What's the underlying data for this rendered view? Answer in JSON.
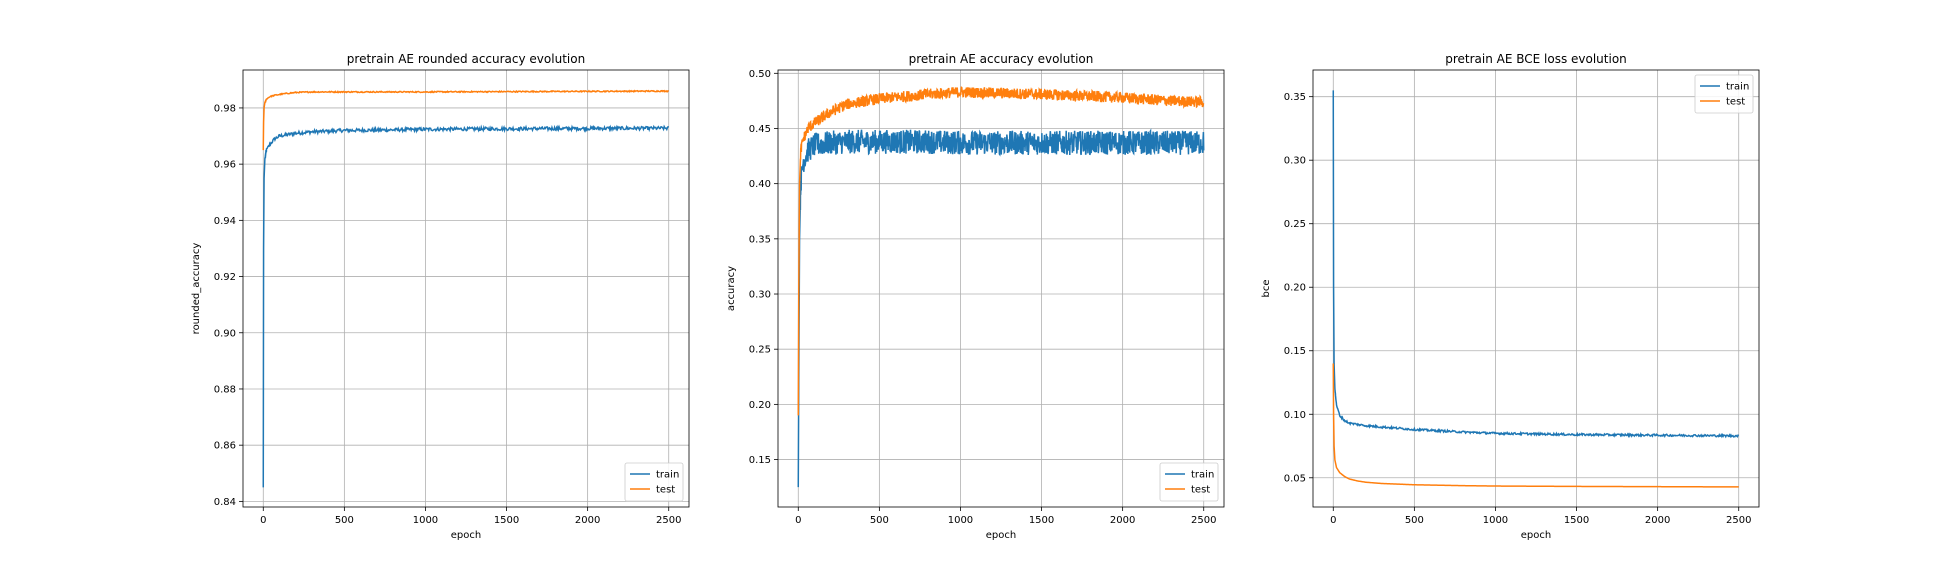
{
  "colors": {
    "train": "#1f77b4",
    "test": "#ff7f0e",
    "grid": "#b0b0b0",
    "frame": "#000000"
  },
  "chart_data": [
    {
      "type": "line",
      "title": "pretrain AE rounded accuracy evolution",
      "xlabel": "epoch",
      "ylabel": "rounded_accuracy",
      "xlim": [
        -125,
        2625
      ],
      "ylim": [
        0.838,
        0.9935
      ],
      "xticks": [
        0,
        500,
        1000,
        1500,
        2000,
        2500
      ],
      "xtick_labels": [
        "0",
        "500",
        "1000",
        "1500",
        "2000",
        "2500"
      ],
      "yticks": [
        0.84,
        0.86,
        0.88,
        0.9,
        0.92,
        0.94,
        0.96,
        0.98
      ],
      "ytick_labels": [
        "0.84",
        "0.86",
        "0.88",
        "0.90",
        "0.92",
        "0.94",
        "0.96",
        "0.98"
      ],
      "grid": true,
      "legend": "lower-right",
      "legend_entries": [
        "train",
        "test"
      ],
      "series": [
        {
          "name": "train",
          "color_key": "train",
          "noise": 0.0006,
          "x": [
            0,
            2,
            5,
            10,
            20,
            40,
            70,
            100,
            150,
            200,
            300,
            500,
            800,
            1000,
            1500,
            2000,
            2500
          ],
          "y": [
            0.845,
            0.93,
            0.955,
            0.962,
            0.965,
            0.967,
            0.969,
            0.97,
            0.9705,
            0.971,
            0.9715,
            0.972,
            0.9722,
            0.9724,
            0.9726,
            0.9727,
            0.9728
          ]
        },
        {
          "name": "test",
          "color_key": "test",
          "noise": 0.0002,
          "x": [
            0,
            2,
            5,
            10,
            20,
            40,
            70,
            100,
            150,
            200,
            300,
            500,
            800,
            1000,
            1500,
            2000,
            2500
          ],
          "y": [
            0.965,
            0.975,
            0.98,
            0.982,
            0.9832,
            0.984,
            0.9845,
            0.9848,
            0.9852,
            0.9855,
            0.9857,
            0.9857,
            0.9857,
            0.9857,
            0.9858,
            0.9859,
            0.986
          ]
        }
      ]
    },
    {
      "type": "line",
      "title": "pretrain AE accuracy evolution",
      "xlabel": "epoch",
      "ylabel": "accuracy",
      "xlim": [
        -125,
        2625
      ],
      "ylim": [
        0.107,
        0.503
      ],
      "xticks": [
        0,
        500,
        1000,
        1500,
        2000,
        2500
      ],
      "xtick_labels": [
        "0",
        "500",
        "1000",
        "1500",
        "2000",
        "2500"
      ],
      "yticks": [
        0.15,
        0.2,
        0.25,
        0.3,
        0.35,
        0.4,
        0.45,
        0.5
      ],
      "ytick_labels": [
        "0.15",
        "0.20",
        "0.25",
        "0.30",
        "0.35",
        "0.40",
        "0.45",
        "0.50"
      ],
      "grid": true,
      "legend": "lower-right",
      "legend_entries": [
        "train",
        "test"
      ],
      "series": [
        {
          "name": "train",
          "color_key": "train",
          "noise": 0.011,
          "x": [
            0,
            3,
            8,
            15,
            30,
            60,
            100,
            200,
            300,
            500,
            800,
            1000,
            1500,
            2000,
            2500
          ],
          "y": [
            0.125,
            0.22,
            0.35,
            0.4,
            0.42,
            0.43,
            0.435,
            0.437,
            0.438,
            0.438,
            0.438,
            0.437,
            0.437,
            0.437,
            0.437
          ]
        },
        {
          "name": "test",
          "color_key": "test",
          "noise": 0.005,
          "x": [
            0,
            3,
            8,
            15,
            30,
            60,
            100,
            200,
            300,
            500,
            800,
            1000,
            1500,
            2000,
            2300,
            2500
          ],
          "y": [
            0.19,
            0.3,
            0.4,
            0.43,
            0.44,
            0.45,
            0.455,
            0.465,
            0.472,
            0.477,
            0.481,
            0.483,
            0.481,
            0.478,
            0.475,
            0.474
          ]
        }
      ]
    },
    {
      "type": "line",
      "title": "pretrain AE BCE loss evolution",
      "xlabel": "epoch",
      "ylabel": "bce",
      "xlim": [
        -125,
        2625
      ],
      "ylim": [
        0.027,
        0.371
      ],
      "xticks": [
        0,
        500,
        1000,
        1500,
        2000,
        2500
      ],
      "xtick_labels": [
        "0",
        "500",
        "1000",
        "1500",
        "2000",
        "2500"
      ],
      "yticks": [
        0.05,
        0.1,
        0.15,
        0.2,
        0.25,
        0.3,
        0.35
      ],
      "ytick_labels": [
        "0.05",
        "0.10",
        "0.15",
        "0.20",
        "0.25",
        "0.30",
        "0.35"
      ],
      "grid": true,
      "legend": "upper-right",
      "legend_entries": [
        "train",
        "test"
      ],
      "series": [
        {
          "name": "train",
          "color_key": "train",
          "noise": 0.0008,
          "x": [
            0,
            2,
            5,
            10,
            20,
            40,
            70,
            100,
            150,
            200,
            300,
            500,
            800,
            1000,
            1500,
            2000,
            2500
          ],
          "y": [
            0.355,
            0.2,
            0.14,
            0.12,
            0.107,
            0.099,
            0.095,
            0.093,
            0.092,
            0.091,
            0.09,
            0.088,
            0.086,
            0.085,
            0.084,
            0.0835,
            0.083
          ]
        },
        {
          "name": "test",
          "color_key": "test",
          "noise": 0.0,
          "x": [
            0,
            2,
            5,
            10,
            20,
            40,
            70,
            100,
            150,
            200,
            300,
            500,
            800,
            1000,
            1500,
            2000,
            2500
          ],
          "y": [
            0.14,
            0.1,
            0.075,
            0.064,
            0.058,
            0.054,
            0.051,
            0.049,
            0.0475,
            0.0465,
            0.0455,
            0.0445,
            0.0438,
            0.0435,
            0.0432,
            0.043,
            0.0428
          ]
        }
      ]
    }
  ]
}
